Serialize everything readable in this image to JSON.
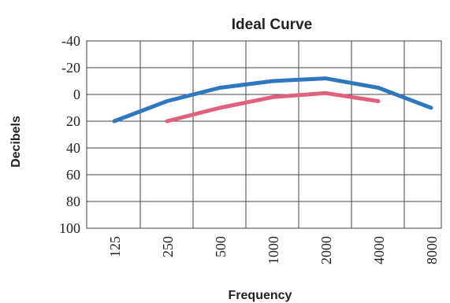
{
  "chart_data": {
    "type": "line",
    "title": "Ideal Curve",
    "xlabel": "Frequency",
    "ylabel": "Decibels",
    "categories": [
      "125",
      "250",
      "500",
      "1000",
      "2000",
      "4000",
      "8000"
    ],
    "y_ticks": [
      "-40",
      "-20",
      "0",
      "20",
      "40",
      "60",
      "80",
      "100"
    ],
    "ylim": [
      -40,
      100
    ],
    "y_inverted": true,
    "grid": true,
    "series": [
      {
        "color": "#2f78c0",
        "values": [
          20,
          5,
          -5,
          -10,
          -12,
          -5,
          10
        ]
      },
      {
        "color": "#e0607e",
        "values": [
          null,
          20,
          10,
          2,
          -1,
          5,
          null
        ]
      }
    ]
  }
}
